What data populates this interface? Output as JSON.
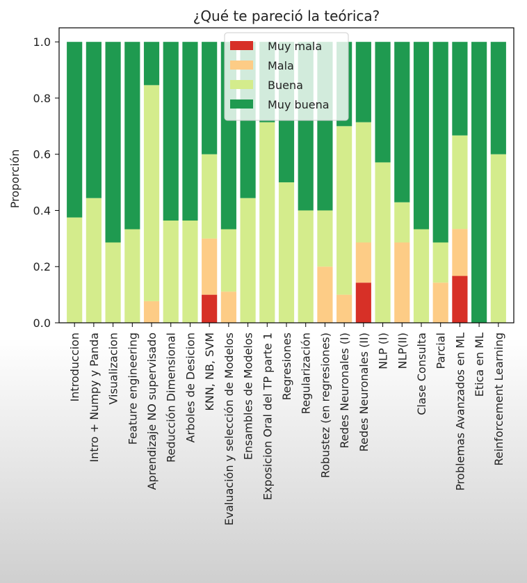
{
  "chart_data": {
    "type": "bar",
    "stacked": true,
    "title": "¿Qué te pareció la teórica?",
    "xlabel": "",
    "ylabel": "Proporción",
    "ylim": [
      0,
      1.05
    ],
    "yticks": [
      "0.0",
      "0.2",
      "0.4",
      "0.6",
      "0.8",
      "1.0"
    ],
    "ytick_values": [
      0,
      0.2,
      0.4,
      0.6,
      0.8,
      1.0
    ],
    "grid": false,
    "legend_position": "top-center",
    "categories": [
      "Introduccion",
      "Intro + Numpy y Panda",
      "Visualizacion",
      "Feature engineering",
      "Aprendizaje NO supervisado",
      "Reducción Dimensional",
      "Arboles de Desicion",
      "KNN, NB, SVM",
      "Evaluación y selección de Modelos",
      "Ensambles de Modelos",
      "Exposicion Oral del TP parte 1",
      "Regresiones",
      "Regularización",
      "Robustez (en regresiones)",
      "Redes Neuronales (I)",
      "Redes Neuronales (II)",
      "NLP (I)",
      "NLP(II)",
      "Clase Consulta",
      "Parcial",
      "Problemas Avanzados en ML",
      "Etica en ML",
      "Reinforcement Learning"
    ],
    "series": [
      {
        "name": "Muy mala",
        "color": "#d73027",
        "values": [
          0,
          0,
          0,
          0,
          0,
          0,
          0,
          0.1,
          0,
          0,
          0,
          0,
          0,
          0,
          0,
          0.143,
          0,
          0,
          0,
          0,
          0.167,
          0,
          0
        ]
      },
      {
        "name": "Mala",
        "color": "#fdcc86",
        "values": [
          0,
          0,
          0,
          0,
          0.077,
          0,
          0,
          0.2,
          0.111,
          0,
          0,
          0,
          0,
          0.2,
          0.1,
          0.143,
          0,
          0.286,
          0,
          0.143,
          0.167,
          0,
          0
        ]
      },
      {
        "name": "Buena",
        "color": "#d4ec8c",
        "values": [
          0.375,
          0.444,
          0.286,
          0.333,
          0.769,
          0.364,
          0.364,
          0.3,
          0.222,
          0.444,
          0.714,
          0.5,
          0.4,
          0.2,
          0.6,
          0.428,
          0.571,
          0.143,
          0.333,
          0.143,
          0.333,
          0,
          0.6
        ]
      },
      {
        "name": "Muy buena",
        "color": "#1f9a50",
        "values": [
          0.625,
          0.556,
          0.714,
          0.667,
          0.154,
          0.636,
          0.636,
          0.4,
          0.667,
          0.556,
          0.286,
          0.5,
          0.6,
          0.6,
          0.3,
          0.286,
          0.429,
          0.571,
          0.667,
          0.714,
          0.333,
          1.0,
          0.4
        ]
      }
    ]
  }
}
